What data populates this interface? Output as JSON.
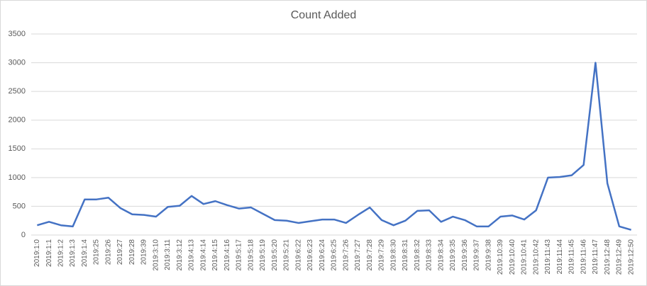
{
  "chart_data": {
    "type": "line",
    "title": "Count Added",
    "categories": [
      "2019:1:0",
      "2019:1:1",
      "2019:1:2",
      "2019:1:3",
      "2019:1:4",
      "2019:25",
      "2019:26",
      "2019:27",
      "2019:28",
      "2019:39",
      "2019:3:10",
      "2019:3:11",
      "2019:3:12",
      "2019:4:13",
      "2019:4:14",
      "2019:4:15",
      "2019:4:16",
      "2019:5:17",
      "2019:5:18",
      "2019:5:19",
      "2019:5:20",
      "2019:5:21",
      "2019:6:22",
      "2019:6:23",
      "2019:6:24",
      "2019:6:25",
      "2019:7:26",
      "2019:7:27",
      "2019:7:28",
      "2019:7:29",
      "2019:8:30",
      "2019:8:31",
      "2019:8:32",
      "2019:8:33",
      "2019:8:34",
      "2019:9:35",
      "2019:9:36",
      "2019:9:37",
      "2019:9:38",
      "2019:10:39",
      "2019:10:40",
      "2019:10:41",
      "2019:10:42",
      "2019:11:43",
      "2019:11:44",
      "2019:11:45",
      "2019:11:46",
      "2019:11:47",
      "2019:12:48",
      "2019:12:49",
      "2019:12:50"
    ],
    "series": [
      {
        "name": "Count Added",
        "color": "#4472c4",
        "values": [
          170,
          230,
          170,
          150,
          620,
          620,
          650,
          470,
          360,
          350,
          320,
          490,
          510,
          680,
          540,
          590,
          520,
          460,
          480,
          370,
          260,
          250,
          210,
          240,
          270,
          270,
          210,
          350,
          480,
          260,
          170,
          250,
          420,
          430,
          230,
          320,
          260,
          150,
          150,
          320,
          340,
          270,
          430,
          1000,
          1010,
          1040,
          1220,
          3000,
          900,
          150,
          90
        ]
      }
    ],
    "ylim": [
      0,
      3500
    ],
    "yticks": [
      0,
      500,
      1000,
      1500,
      2000,
      2500,
      3000,
      3500
    ],
    "grid": true
  }
}
